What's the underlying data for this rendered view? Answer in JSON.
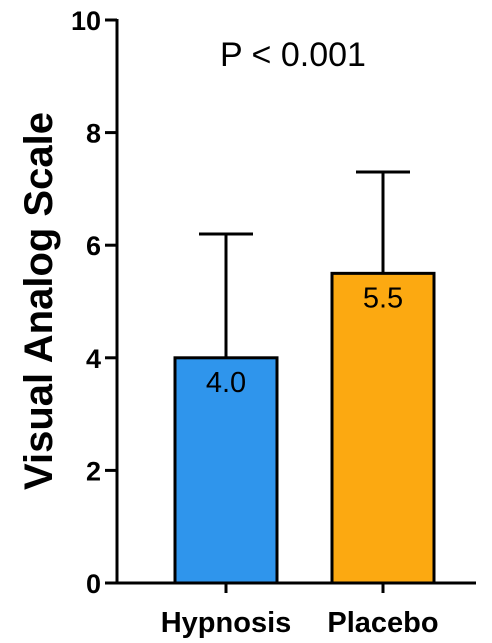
{
  "chart_data": {
    "type": "bar",
    "categories": [
      "Hypnosis",
      "Placebo"
    ],
    "values": [
      4.0,
      5.5
    ],
    "value_labels": [
      "4.0",
      "5.5"
    ],
    "error_upper": [
      6.2,
      7.3
    ],
    "colors": [
      "#2f95ec",
      "#fca911"
    ],
    "ylabel": "Visual Analog Scale",
    "xlabel": "",
    "ylim": [
      0,
      10
    ],
    "yticks": [
      "0",
      "2",
      "4",
      "6",
      "8",
      "10"
    ],
    "annotation": "P < 0.001",
    "grid": false,
    "legend": "none"
  }
}
